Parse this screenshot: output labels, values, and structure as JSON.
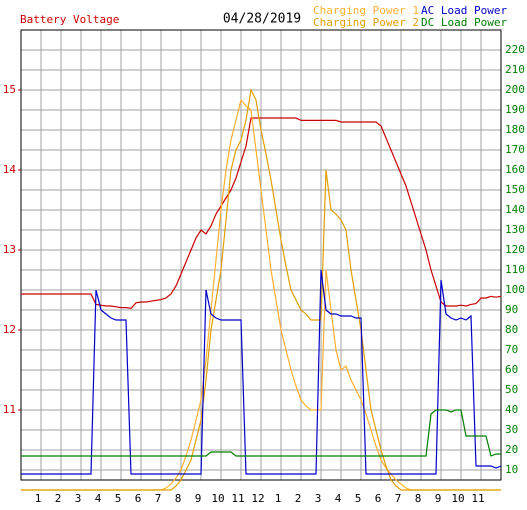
{
  "chart_data": {
    "type": "line",
    "title": "04/28/2019",
    "xlim": [
      0,
      24
    ],
    "xticks": [
      1,
      2,
      3,
      4,
      5,
      6,
      7,
      8,
      9,
      10,
      11,
      12,
      {
        "value": 13,
        "label": "1"
      },
      {
        "value": 14,
        "label": "2"
      },
      {
        "value": 15,
        "label": "3"
      },
      {
        "value": 16,
        "label": "4"
      },
      {
        "value": 17,
        "label": "5"
      },
      {
        "value": 18,
        "label": "6"
      },
      {
        "value": 19,
        "label": "7"
      },
      {
        "value": 20,
        "label": "8"
      },
      {
        "value": 21,
        "label": "9"
      },
      {
        "value": 22,
        "label": "10"
      },
      {
        "value": 23,
        "label": "11"
      }
    ],
    "ylim": [
      10.125,
      15.75
    ],
    "yticks": [
      11,
      12,
      13,
      14,
      15
    ],
    "y2lim": [
      5,
      230
    ],
    "y2ticks": [
      10,
      20,
      30,
      40,
      50,
      60,
      70,
      80,
      90,
      100,
      110,
      120,
      130,
      140,
      150,
      160,
      170,
      180,
      190,
      200,
      210,
      220
    ],
    "grid": true,
    "x": [
      0,
      0.25,
      0.5,
      0.75,
      1,
      1.25,
      1.5,
      1.75,
      2,
      2.25,
      2.5,
      2.75,
      3,
      3.25,
      3.5,
      3.75,
      4,
      4.25,
      4.5,
      4.75,
      5,
      5.25,
      5.5,
      5.75,
      6,
      6.25,
      6.5,
      6.75,
      7,
      7.25,
      7.5,
      7.75,
      8,
      8.25,
      8.5,
      8.75,
      9,
      9.25,
      9.5,
      9.75,
      10,
      10.25,
      10.5,
      10.75,
      11,
      11.25,
      11.5,
      11.75,
      12,
      12.25,
      12.5,
      12.75,
      13,
      13.25,
      13.5,
      13.75,
      14,
      14.25,
      14.5,
      14.75,
      15,
      15.25,
      15.5,
      15.75,
      16,
      16.25,
      16.5,
      16.75,
      17,
      17.25,
      17.5,
      17.75,
      18,
      18.25,
      18.5,
      18.75,
      19,
      19.25,
      19.5,
      19.75,
      20,
      20.25,
      20.5,
      20.75,
      21,
      21.25,
      21.5,
      21.75,
      22,
      22.25,
      22.5,
      22.75,
      23,
      23.25,
      23.5,
      23.75,
      24
    ],
    "series": [
      {
        "name": "Battery Voltage",
        "color": "#cc0000",
        "axis": "y",
        "values": [
          12.45,
          12.45,
          12.45,
          12.45,
          12.45,
          12.45,
          12.45,
          12.45,
          12.45,
          12.45,
          12.45,
          12.45,
          12.45,
          12.45,
          12.45,
          12.32,
          12.31,
          12.3,
          12.3,
          12.29,
          12.28,
          12.28,
          12.27,
          12.34,
          12.35,
          12.35,
          12.36,
          12.37,
          12.38,
          12.4,
          12.45,
          12.55,
          12.7,
          12.85,
          13.0,
          13.15,
          13.25,
          13.2,
          13.3,
          13.45,
          13.55,
          13.65,
          13.75,
          13.9,
          14.1,
          14.3,
          14.65,
          14.65,
          14.65,
          14.65,
          14.65,
          14.65,
          14.65,
          14.65,
          14.65,
          14.65,
          14.62,
          14.62,
          14.62,
          14.62,
          14.62,
          14.62,
          14.62,
          14.62,
          14.6,
          14.6,
          14.6,
          14.6,
          14.6,
          14.6,
          14.6,
          14.6,
          14.55,
          14.4,
          14.25,
          14.1,
          13.95,
          13.8,
          13.6,
          13.4,
          13.2,
          13.0,
          12.75,
          12.55,
          12.35,
          12.3,
          12.3,
          12.3,
          12.31,
          12.3,
          12.32,
          12.33,
          12.4,
          12.4,
          12.42,
          12.41,
          12.42
        ]
      },
      {
        "name": "Charging Power 1",
        "color": "#ffb030",
        "axis": "y2",
        "values": [
          0,
          0,
          0,
          0,
          0,
          0,
          0,
          0,
          0,
          0,
          0,
          0,
          0,
          0,
          0,
          0,
          0,
          0,
          0,
          0,
          0,
          0,
          0,
          0,
          0,
          0,
          0,
          0,
          0,
          1,
          3,
          6,
          10,
          17,
          25,
          35,
          45,
          65,
          90,
          115,
          140,
          160,
          175,
          185,
          195,
          192,
          190,
          170,
          150,
          130,
          110,
          95,
          80,
          70,
          60,
          52,
          45,
          42,
          40,
          40,
          40,
          110,
          90,
          70,
          60,
          62,
          55,
          50,
          45,
          38,
          30,
          22,
          15,
          11,
          8,
          5,
          3,
          1,
          0,
          0,
          0,
          0,
          0,
          0,
          0,
          0,
          0,
          0,
          0,
          0,
          0,
          0,
          0,
          0,
          0,
          0,
          0
        ]
      },
      {
        "name": "Charging Power 2",
        "color": "#e0a000",
        "axis": "y2",
        "values": [
          0,
          0,
          0,
          0,
          0,
          0,
          0,
          0,
          0,
          0,
          0,
          0,
          0,
          0,
          0,
          0,
          0,
          0,
          0,
          0,
          0,
          0,
          0,
          0,
          0,
          0,
          0,
          0,
          0,
          0,
          0,
          2,
          5,
          10,
          15,
          25,
          35,
          55,
          80,
          95,
          110,
          135,
          160,
          170,
          175,
          185,
          200,
          195,
          180,
          168,
          155,
          140,
          125,
          112,
          100,
          95,
          90,
          88,
          85,
          85,
          85,
          160,
          140,
          138,
          135,
          130,
          110,
          95,
          80,
          60,
          40,
          30,
          20,
          12,
          5,
          2,
          0,
          0,
          0,
          0,
          0,
          0,
          0,
          0,
          0,
          0,
          0,
          0,
          0,
          0,
          0,
          0,
          0,
          0,
          0,
          0,
          0
        ]
      },
      {
        "name": "AC Load Power",
        "color": "#0000cc",
        "axis": "y2",
        "values": [
          8,
          8,
          8,
          8,
          8,
          8,
          8,
          8,
          8,
          8,
          8,
          8,
          8,
          8,
          8,
          100,
          90,
          88,
          86,
          85,
          85,
          85,
          8,
          8,
          8,
          8,
          8,
          8,
          8,
          8,
          8,
          8,
          8,
          8,
          8,
          8,
          8,
          100,
          88,
          86,
          85,
          85,
          85,
          85,
          85,
          8,
          8,
          8,
          8,
          8,
          8,
          8,
          8,
          8,
          8,
          8,
          8,
          8,
          8,
          8,
          110,
          90,
          88,
          88,
          87,
          87,
          87,
          86,
          86,
          8,
          8,
          8,
          8,
          8,
          8,
          8,
          8,
          8,
          8,
          8,
          8,
          8,
          8,
          8,
          105,
          88,
          86,
          85,
          86,
          85,
          87,
          12,
          12,
          12,
          12,
          11,
          12
        ]
      },
      {
        "name": "DC Load Power",
        "color": "#008000",
        "axis": "y2",
        "values": [
          17,
          17,
          17,
          17,
          17,
          17,
          17,
          17,
          17,
          17,
          17,
          17,
          17,
          17,
          17,
          17,
          17,
          17,
          17,
          17,
          17,
          17,
          17,
          17,
          17,
          17,
          17,
          17,
          17,
          17,
          17,
          17,
          17,
          17,
          17,
          17,
          17,
          17,
          19,
          19,
          19,
          19,
          19,
          17,
          17,
          17,
          17,
          17,
          17,
          17,
          17,
          17,
          17,
          17,
          17,
          17,
          17,
          17,
          17,
          17,
          17,
          17,
          17,
          17,
          17,
          17,
          17,
          17,
          17,
          17,
          17,
          17,
          17,
          17,
          17,
          17,
          17,
          17,
          17,
          17,
          17,
          17,
          38,
          40,
          40,
          40,
          39,
          40,
          40,
          27,
          27,
          27,
          27,
          27,
          17,
          18,
          18
        ]
      }
    ]
  }
}
